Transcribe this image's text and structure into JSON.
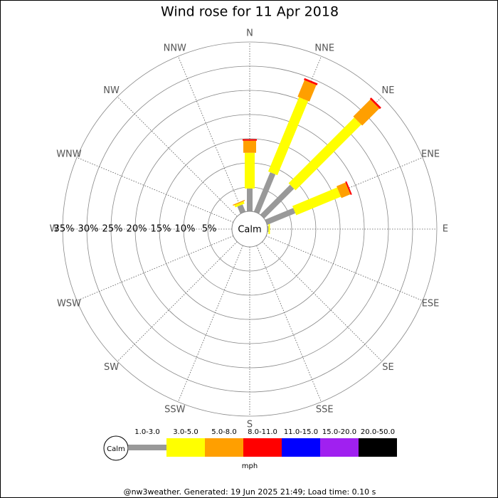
{
  "chart_data": {
    "type": "wind-rose",
    "title": "Wind rose for 11 Apr 2018",
    "directions": [
      "N",
      "NNE",
      "NE",
      "ENE",
      "E",
      "ESE",
      "SE",
      "SSE",
      "S",
      "SSW",
      "SW",
      "WSW",
      "W",
      "WNW",
      "NW",
      "NNW"
    ],
    "series": [
      {
        "name": "1.0-3.0",
        "color": "#999999",
        "values": [
          4.7,
          8.8,
          8.7,
          6.3,
          0.2,
          0,
          0,
          0,
          0,
          0,
          0,
          0,
          0,
          0,
          0,
          1.6
        ]
      },
      {
        "name": "3.0-5.0",
        "color": "#ffff00",
        "values": [
          7.4,
          16.6,
          19.2,
          10.0,
          0.3,
          0,
          0,
          0,
          0,
          0,
          0,
          0,
          0,
          0,
          0,
          0.5
        ]
      },
      {
        "name": "5.0-8.0",
        "color": "#ff9f00",
        "values": [
          2.5,
          3.7,
          5.0,
          2.0,
          0,
          0,
          0,
          0,
          0,
          0,
          0,
          0,
          0,
          0,
          0,
          0.2
        ]
      },
      {
        "name": "8.0-11.0",
        "color": "#ff0000",
        "values": [
          0.3,
          0.4,
          0.4,
          0.3,
          0,
          0,
          0,
          0,
          0,
          0,
          0,
          0,
          0,
          0,
          0,
          0
        ]
      },
      {
        "name": "11.0-15.0",
        "color": "#0000ff",
        "values": [
          0,
          0,
          0,
          0,
          0,
          0,
          0,
          0,
          0,
          0,
          0,
          0,
          0,
          0,
          0,
          0
        ]
      },
      {
        "name": "15.0-20.0",
        "color": "#a020f0",
        "values": [
          0,
          0,
          0,
          0,
          0,
          0,
          0,
          0,
          0,
          0,
          0,
          0,
          0,
          0,
          0,
          0
        ]
      },
      {
        "name": "20.0-50.0",
        "color": "#000000",
        "values": [
          0,
          0,
          0,
          0,
          0,
          0,
          0,
          0,
          0,
          0,
          0,
          0,
          0,
          0,
          0,
          0
        ]
      }
    ],
    "rlim": [
      0,
      35
    ],
    "rticks": [
      {
        "value": 5,
        "label": "5%"
      },
      {
        "value": 10,
        "label": "10%"
      },
      {
        "value": 15,
        "label": "15%"
      },
      {
        "value": 20,
        "label": "20%"
      },
      {
        "value": 25,
        "label": "25%"
      },
      {
        "value": 30,
        "label": "30%"
      },
      {
        "value": 35,
        "label": "35%"
      }
    ],
    "calm_label": "Calm",
    "units": "mph",
    "footer": "@nw3weather. Generated: 19 Jun 2025 21:49; Load time: 0.10 s"
  }
}
